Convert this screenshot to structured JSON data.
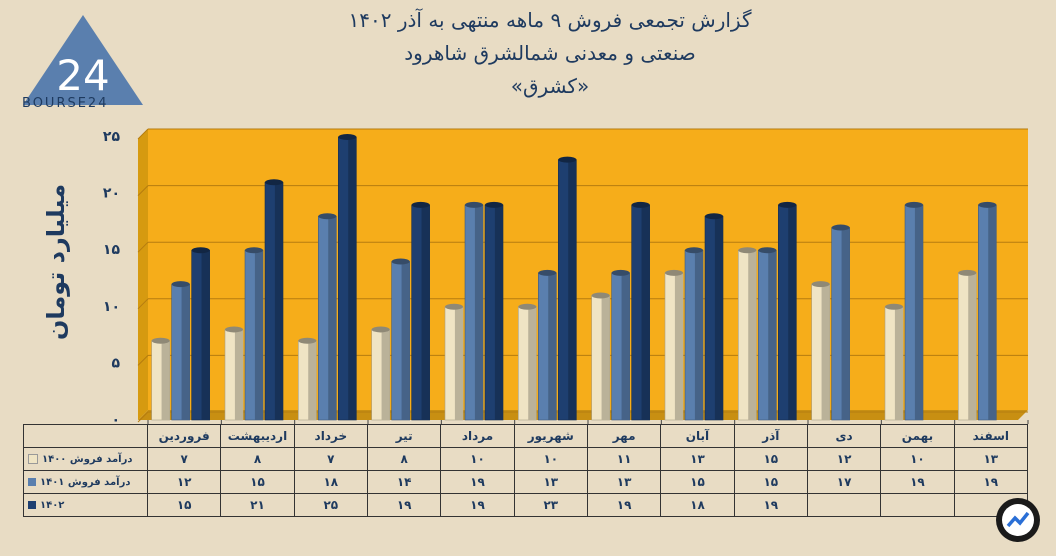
{
  "brand": {
    "logo_text": "BOURSE24",
    "logo_digits": "24"
  },
  "title": {
    "line1": "گزارش تجمعی فروش ۹ ماهه منتهی به آذر ۱۴۰۲",
    "line2": "صنعتی و معدنی شمالشرق شاهرود",
    "line3": "«کشرق»"
  },
  "chart_data": {
    "type": "bar",
    "title": "گزارش تجمعی فروش ۹ ماهه منتهی به آذر ۱۴۰۲",
    "ylabel": "میلیارد تومان",
    "xlabel": "",
    "ylim": [
      0,
      25
    ],
    "yticks": [
      0,
      5,
      10,
      15,
      20,
      25
    ],
    "ytick_labels": [
      "۰",
      "۵",
      "۱۰",
      "۱۵",
      "۲۰",
      "۲۵"
    ],
    "categories": [
      "فروردین",
      "اردیبهشت",
      "خرداد",
      "تیر",
      "مرداد",
      "شهریور",
      "مهر",
      "آبان",
      "آذر",
      "دی",
      "بهمن",
      "اسفند"
    ],
    "series": [
      {
        "name": "درآمد فروش ۱۴۰۰",
        "color": "#efe4c4",
        "values": [
          7,
          8,
          7,
          8,
          10,
          10,
          11,
          13,
          15,
          12,
          10,
          13
        ],
        "labels": [
          "۷",
          "۸",
          "۷",
          "۸",
          "۱۰",
          "۱۰",
          "۱۱",
          "۱۳",
          "۱۵",
          "۱۲",
          "۱۰",
          "۱۳"
        ]
      },
      {
        "name": "درآمد فروش ۱۴۰۱",
        "color": "#5a7fae",
        "values": [
          12,
          15,
          18,
          14,
          19,
          13,
          13,
          15,
          15,
          17,
          19,
          19
        ],
        "labels": [
          "۱۲",
          "۱۵",
          "۱۸",
          "۱۴",
          "۱۹",
          "۱۳",
          "۱۳",
          "۱۵",
          "۱۵",
          "۱۷",
          "۱۹",
          "۱۹"
        ]
      },
      {
        "name": "۱۴۰۲",
        "color": "#1e3f70",
        "values": [
          15,
          21,
          25,
          19,
          19,
          23,
          19,
          18,
          19,
          null,
          null,
          null
        ],
        "labels": [
          "۱۵",
          "۲۱",
          "۲۵",
          "۱۹",
          "۱۹",
          "۲۳",
          "۱۹",
          "۱۸",
          "۱۹",
          "",
          "",
          ""
        ]
      }
    ],
    "legend": "table-left",
    "grid": true
  }
}
